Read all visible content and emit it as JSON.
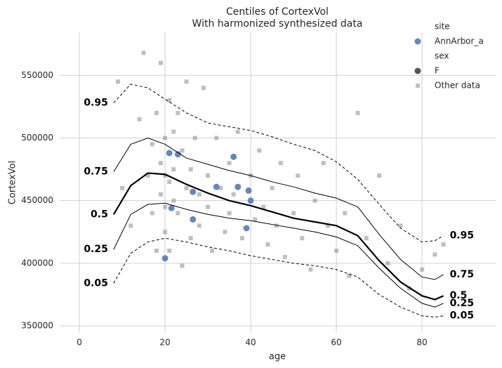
{
  "chart_data": {
    "type": "line",
    "title": "Centiles of CortexVol",
    "subtitle": "With harmonized synthesized data",
    "x_label": "age",
    "y_label": "CortexVol",
    "xlim": [
      -4.6,
      97.2
    ],
    "ylim": [
      344400,
      584400
    ],
    "xticks": [
      0,
      20,
      40,
      60,
      80
    ],
    "yticks": [
      350000,
      400000,
      450000,
      500000,
      550000
    ],
    "grid": true,
    "legend": {
      "location": "upper right",
      "site_title": "site",
      "sex_title": "sex",
      "sex_value": "F"
    },
    "series": [
      {
        "name": "Other data",
        "kind": "scatter",
        "marker": "square",
        "color": "#808080",
        "x": [
          9,
          10,
          12,
          14,
          15,
          16,
          17,
          17,
          18,
          18,
          19,
          19,
          19,
          20,
          20,
          20,
          20,
          21,
          21,
          21,
          22,
          22,
          22,
          23,
          23,
          24,
          24,
          25,
          25,
          26,
          26,
          27,
          28,
          28,
          29,
          30,
          30,
          31,
          32,
          33,
          34,
          35,
          35,
          36,
          37,
          38,
          40,
          41,
          42,
          43,
          44,
          45,
          46,
          47,
          48,
          50,
          51,
          52,
          54,
          55,
          57,
          58,
          60,
          62,
          63,
          65,
          67,
          70,
          72,
          75,
          77,
          80,
          83,
          85
        ],
        "values": [
          545000,
          460000,
          430000,
          515000,
          568000,
          470000,
          495000,
          440000,
          520000,
          410000,
          560000,
          480000,
          455000,
          500000,
          445000,
          470000,
          425000,
          530000,
          465000,
          410000,
          505000,
          450000,
          475000,
          520000,
          440000,
          490000,
          398000,
          545000,
          460000,
          475000,
          420000,
          500000,
          455000,
          430000,
          540000,
          470000,
          445000,
          410000,
          500000,
          460000,
          425000,
          480000,
          440000,
          455000,
          505000,
          420000,
          470000,
          435000,
          490000,
          445000,
          415000,
          460000,
          430000,
          480000,
          405000,
          440000,
          470000,
          420000,
          395000,
          450000,
          480000,
          430000,
          410000,
          440000,
          390000,
          520000,
          420000,
          470000,
          400000,
          430000,
          380000,
          395000,
          407000,
          415000
        ]
      },
      {
        "name": "AnnArbor_a",
        "kind": "scatter",
        "marker": "circle",
        "color": "#4c72b0",
        "x": [
          20,
          21,
          21.5,
          23,
          26.5,
          26.5,
          32,
          36,
          37,
          39,
          39.5,
          40
        ],
        "values": [
          404000,
          488000,
          444000,
          487000,
          457000,
          435000,
          461000,
          485000,
          461000,
          428000,
          458000,
          450000
        ]
      },
      {
        "name": "0.95",
        "kind": "line",
        "dashed": true,
        "width": 1,
        "color": "#000000",
        "x": [
          8,
          12,
          16,
          20,
          25,
          30,
          35,
          40,
          45,
          50,
          55,
          60,
          65,
          70,
          75,
          80,
          83,
          85
        ],
        "values": [
          528000,
          543000,
          540000,
          531000,
          520000,
          512000,
          509000,
          506000,
          501000,
          495000,
          490000,
          481000,
          467000,
          447000,
          428000,
          417000,
          418000,
          422000
        ]
      },
      {
        "name": "0.75",
        "kind": "line",
        "dashed": false,
        "width": 1,
        "color": "#000000",
        "x": [
          8,
          12,
          16,
          20,
          25,
          30,
          35,
          40,
          45,
          50,
          55,
          60,
          65,
          70,
          75,
          80,
          83,
          85
        ],
        "values": [
          473000,
          495000,
          500000,
          495000,
          484000,
          479000,
          474000,
          470000,
          465000,
          461000,
          456000,
          452000,
          445000,
          423000,
          403000,
          389000,
          387000,
          391000
        ]
      },
      {
        "name": "0.5",
        "kind": "line",
        "dashed": false,
        "width": 2.2,
        "color": "#000000",
        "x": [
          8,
          12,
          16,
          20,
          25,
          30,
          35,
          40,
          45,
          50,
          55,
          60,
          65,
          70,
          75,
          80,
          83,
          85
        ],
        "values": [
          439000,
          462000,
          472000,
          471000,
          463000,
          456000,
          450000,
          446000,
          441000,
          436000,
          433000,
          430000,
          422000,
          402000,
          385000,
          374000,
          371000,
          374000
        ]
      },
      {
        "name": "0.25",
        "kind": "line",
        "dashed": false,
        "width": 1,
        "color": "#000000",
        "x": [
          8,
          12,
          16,
          20,
          25,
          30,
          35,
          40,
          45,
          50,
          55,
          60,
          65,
          70,
          75,
          80,
          83,
          85
        ],
        "values": [
          411000,
          439000,
          447000,
          448000,
          443000,
          439000,
          436000,
          434000,
          431000,
          428000,
          425000,
          421000,
          414000,
          396000,
          380000,
          368000,
          365000,
          368000
        ]
      },
      {
        "name": "0.05",
        "kind": "line",
        "dashed": true,
        "width": 1,
        "color": "#000000",
        "x": [
          8,
          12,
          16,
          20,
          25,
          30,
          35,
          40,
          45,
          50,
          55,
          60,
          65,
          70,
          75,
          80,
          83,
          85
        ],
        "values": [
          384000,
          408000,
          417000,
          420000,
          417000,
          413000,
          410000,
          406000,
          403000,
          400000,
          398000,
          395000,
          389000,
          375000,
          365000,
          358000,
          357000,
          358000
        ]
      }
    ]
  }
}
